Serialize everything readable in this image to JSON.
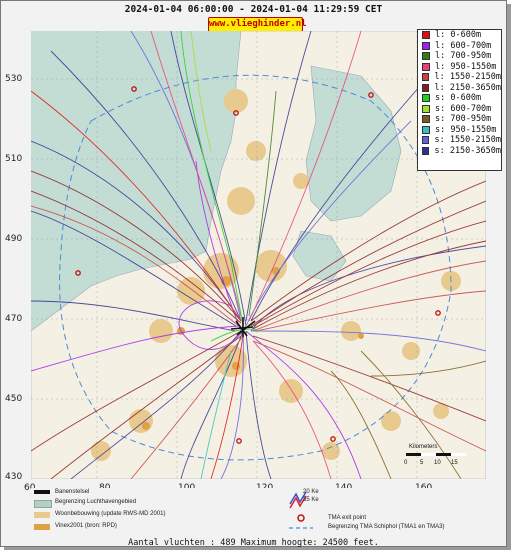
{
  "title": "2024-01-04 06:00:00 - 2024-01-04 11:29:59 CET",
  "site_badge": "www.vlieghinder.nl",
  "y_ticks": [
    "530",
    "510",
    "490",
    "470",
    "450",
    "430"
  ],
  "x_ticks": [
    "60",
    "80",
    "100",
    "120",
    "140",
    "160"
  ],
  "legend": [
    {
      "label": "l: 0-600m",
      "color": "#e01010"
    },
    {
      "label": "l: 600-700m",
      "color": "#a020f0"
    },
    {
      "label": "l: 700-950m",
      "color": "#2e7d1e"
    },
    {
      "label": "l: 950-1550m",
      "color": "#e8407a"
    },
    {
      "label": "l: 1550-2150m",
      "color": "#c84040"
    },
    {
      "label": "l: 2150-3650m",
      "color": "#8b1a1a"
    },
    {
      "label": "s: 0-600m",
      "color": "#20d020"
    },
    {
      "label": "s: 600-700m",
      "color": "#a0e030"
    },
    {
      "label": "s: 700-950m",
      "color": "#7b5a1a"
    },
    {
      "label": "s: 950-1550m",
      "color": "#30c0c0"
    },
    {
      "label": "s: 1550-2150m",
      "color": "#6060e0"
    },
    {
      "label": "s: 2150-3650m",
      "color": "#303090"
    }
  ],
  "scale_label": "Kilometers",
  "scale_ticks": [
    "0",
    "5",
    "10",
    "15"
  ],
  "key": {
    "runways": "Banenstelsel",
    "airport_boundary": "Begrenzing Luchthavengebied",
    "housing": "Woonbebouwing (update RWS-MD 2001)",
    "vinex": "Vinex2001 (bron: RPD)",
    "ke20": "20 Ke",
    "ke35": "35 Ke",
    "tma_exit": "TMA exit point",
    "tma_boundary": "Begrenzing TMA Schiphol  (TMA1 en TMA3)"
  },
  "footer": "Aantal vluchten : 489 Maximum hoogte: 24500 feet.",
  "colors": {
    "sea": "#c4ddd4",
    "land": "#f4f0e4",
    "housing": "#e8c98e",
    "urban": "#e0a048",
    "tma": "#4a8ad8"
  }
}
